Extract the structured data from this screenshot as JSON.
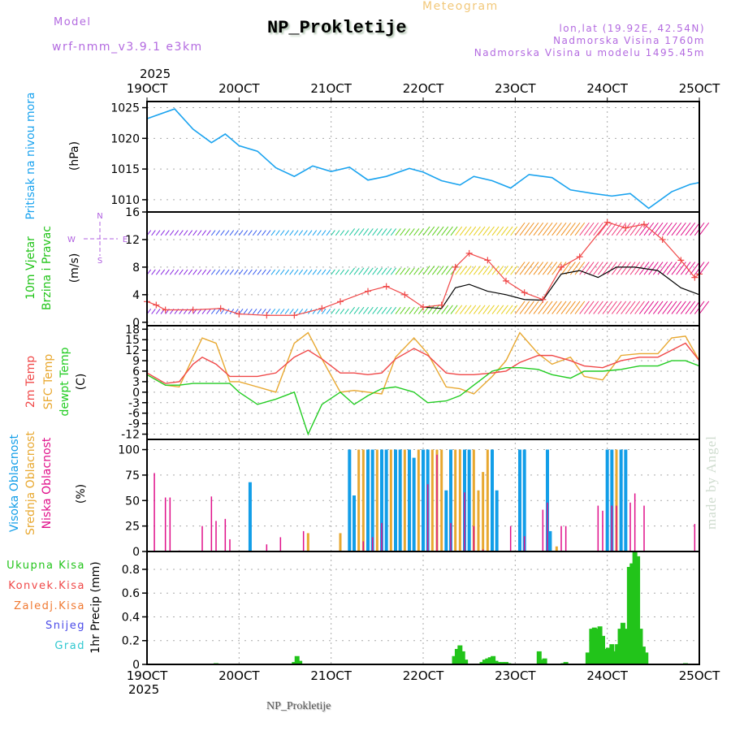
{
  "header": {
    "model_label": "Model",
    "model_name": "wrf-nmm_v3.9.1  e3km",
    "meteogram_label": "Meteogram",
    "station": "NP_Prokletije",
    "coords": "lon,lat (19.92E, 42.54N)",
    "elevation": "Nadmorska Visina 1760m",
    "model_elevation": "Nadmorska Visina u modelu 1495.45m",
    "year": "2025"
  },
  "footer": {
    "station": "NP_Prokletije",
    "year": "2025",
    "watermark": "made by Angel"
  },
  "compass": {
    "n": "N",
    "s": "S",
    "e": "E",
    "w": "W"
  },
  "colors": {
    "pressure": "#1aa3ef",
    "wind_label": "#22c41a",
    "temp2m": "#f04848",
    "sfc": "#e8a830",
    "dew": "#22cc22",
    "cloud_high": "#129ee8",
    "cloud_mid": "#e8a830",
    "cloud_low": "#e0108a",
    "precip_total": "#22c41a",
    "precip_conv": "#f04848",
    "precip_frz": "#f07830",
    "snow": "#4a4ae8",
    "hail": "#30c8d0",
    "compass": "#b060e0"
  },
  "chart_data": [
    {
      "type": "line",
      "title": "Pritisak na nivou mora",
      "ylabel": "(hPa)",
      "ylim": [
        1008,
        1026
      ],
      "yticks": [
        1010,
        1015,
        1020,
        1025
      ],
      "x_ticks": [
        "19OCT",
        "20OCT",
        "21OCT",
        "22OCT",
        "23OCT",
        "24OCT",
        "25OCT"
      ],
      "xlim_days": [
        0,
        6
      ],
      "grid": true,
      "series": [
        {
          "name": "Pritisak na nivou mora",
          "x": [
            0,
            0.3,
            0.5,
            0.7,
            0.85,
            1,
            1.2,
            1.4,
            1.6,
            1.8,
            2,
            2.2,
            2.4,
            2.6,
            2.85,
            3,
            3.2,
            3.4,
            3.55,
            3.75,
            3.95,
            4.15,
            4.4,
            4.6,
            4.85,
            5.05,
            5.25,
            5.45,
            5.7,
            5.9,
            6
          ],
          "values": [
            1023.2,
            1024.8,
            1021.5,
            1019.3,
            1020.7,
            1018.8,
            1017.9,
            1015.2,
            1013.8,
            1015.5,
            1014.6,
            1015.3,
            1013.2,
            1013.8,
            1015.1,
            1014.5,
            1013.1,
            1012.4,
            1013.8,
            1013.1,
            1011.9,
            1014.1,
            1013.6,
            1011.6,
            1011.0,
            1010.6,
            1011.0,
            1008.6,
            1011.3,
            1012.5,
            1012.8
          ]
        }
      ]
    },
    {
      "type": "line",
      "title": "10m Vjetar Brzina i Pravac",
      "ylabel": "(m/s)",
      "ylim": [
        -0.5,
        16
      ],
      "yticks": [
        0,
        4,
        8,
        12,
        16
      ],
      "grid": true,
      "series": [
        {
          "name": "wind speed",
          "color": "#f04848",
          "x": [
            0,
            0.1,
            0.2,
            0.5,
            0.8,
            1,
            1.3,
            1.6,
            1.9,
            2.1,
            2.4,
            2.6,
            2.8,
            3,
            3.2,
            3.35,
            3.5,
            3.7,
            3.9,
            4.1,
            4.3,
            4.5,
            4.7,
            5.0,
            5.2,
            5.4,
            5.6,
            5.8,
            5.95,
            6
          ],
          "values": [
            3,
            2.5,
            1.8,
            1.8,
            2.0,
            1.2,
            1.0,
            1.0,
            2.0,
            3.0,
            4.5,
            5.2,
            4.0,
            2.2,
            2.5,
            8.0,
            10.0,
            9.0,
            6.0,
            4.3,
            3.3,
            8.0,
            9.5,
            14.5,
            13.7,
            14.2,
            12.0,
            9.0,
            6.5,
            7
          ]
        },
        {
          "name": "wind gust",
          "color": "#000000",
          "x": [
            3,
            3.2,
            3.35,
            3.5,
            3.7,
            3.9,
            4.1,
            4.3,
            4.5,
            4.7,
            4.9,
            5.1,
            5.3,
            5.55,
            5.8,
            6
          ],
          "values": [
            2.2,
            2.0,
            5.0,
            5.5,
            4.5,
            4.0,
            3.3,
            3.2,
            7.0,
            7.5,
            6.5,
            8.0,
            8.0,
            7.5,
            5.0,
            4.0
          ]
        },
        {
          "name": "wind barbs level",
          "color": "#129ee8",
          "x": [
            0,
            1,
            2,
            3,
            4,
            5,
            6
          ],
          "values": [
            1.5,
            1.5,
            3.5,
            2.5,
            4.5,
            5,
            4
          ]
        }
      ]
    },
    {
      "type": "line",
      "title": "2m Temp / SFC Temp / dewpt Temp",
      "ylabel": "(C)",
      "ylim": [
        -13.5,
        19
      ],
      "yticks": [
        -12,
        -9,
        -6,
        -3,
        0,
        3,
        6,
        9,
        12,
        15,
        18
      ],
      "grid": true,
      "series": [
        {
          "name": "2m Temp",
          "x": [
            0,
            0.2,
            0.35,
            0.5,
            0.6,
            0.75,
            0.9,
            1,
            1.2,
            1.4,
            1.6,
            1.75,
            1.9,
            2.1,
            2.25,
            2.4,
            2.55,
            2.7,
            2.9,
            3.05,
            3.25,
            3.4,
            3.55,
            3.75,
            3.9,
            4.05,
            4.25,
            4.4,
            4.6,
            4.75,
            4.95,
            5.15,
            5.35,
            5.55,
            5.7,
            5.85,
            6
          ],
          "values": [
            5.5,
            2.5,
            3,
            8,
            10,
            8,
            4.5,
            4.5,
            4.5,
            5.5,
            10,
            12,
            9.5,
            5.5,
            5.5,
            5,
            5.5,
            9.5,
            12.5,
            10.5,
            5.5,
            5,
            5,
            5.5,
            6,
            8.5,
            10.5,
            10.5,
            9,
            7.5,
            7,
            9,
            10,
            10,
            12,
            14,
            9
          ]
        },
        {
          "name": "SFC Temp",
          "x": [
            0,
            0.2,
            0.35,
            0.5,
            0.6,
            0.75,
            0.9,
            1,
            1.2,
            1.4,
            1.6,
            1.75,
            1.9,
            2.1,
            2.25,
            2.4,
            2.55,
            2.7,
            2.9,
            3.05,
            3.25,
            3.4,
            3.55,
            3.75,
            3.9,
            4.05,
            4.25,
            4.4,
            4.6,
            4.75,
            4.95,
            5.15,
            5.35,
            5.55,
            5.7,
            5.85,
            6
          ],
          "values": [
            5,
            2,
            1.5,
            10,
            15.5,
            14,
            3,
            3,
            1.5,
            0,
            14,
            17,
            9.5,
            0,
            0.5,
            0,
            -0.5,
            10,
            15.5,
            11,
            1.5,
            1,
            -0.5,
            4.5,
            9,
            17,
            11,
            8,
            10,
            4.5,
            3.5,
            10.5,
            11,
            11,
            15.5,
            16,
            9
          ]
        },
        {
          "name": "dewpt Temp",
          "x": [
            0,
            0.2,
            0.35,
            0.5,
            0.6,
            0.75,
            0.9,
            1,
            1.2,
            1.4,
            1.6,
            1.75,
            1.9,
            2.1,
            2.25,
            2.4,
            2.55,
            2.7,
            2.9,
            3.05,
            3.25,
            3.4,
            3.55,
            3.75,
            3.9,
            4.05,
            4.25,
            4.4,
            4.6,
            4.75,
            4.95,
            5.15,
            5.35,
            5.55,
            5.7,
            5.85,
            6
          ],
          "values": [
            5,
            2,
            2,
            2.5,
            2.5,
            2.5,
            2.5,
            0,
            -3.5,
            -2,
            0,
            -12,
            -3.5,
            0,
            -3.5,
            -1,
            1,
            1.5,
            0,
            -3,
            -2.5,
            -1,
            2,
            6,
            7,
            7,
            6.5,
            5,
            4,
            6,
            6,
            6.5,
            7.5,
            7.5,
            9,
            9,
            7.5
          ]
        }
      ]
    },
    {
      "type": "bar",
      "title": "Visoka / Srednja / Niska Oblacnost",
      "ylabel": "(%)",
      "ylim": [
        0,
        110
      ],
      "yticks": [
        0,
        25,
        50,
        75,
        100
      ],
      "grid": true,
      "series": [
        {
          "name": "Visoka Oblacnost",
          "x": [
            1.12,
            2.2,
            2.25,
            2.4,
            2.45,
            2.55,
            2.6,
            2.7,
            2.75,
            2.85,
            2.9,
            3.0,
            3.05,
            3.25,
            3.3,
            3.45,
            3.5,
            3.75,
            3.8,
            4.05,
            4.1,
            4.35,
            4.38,
            5.0,
            5.05,
            5.15,
            5.2
          ],
          "values": [
            68,
            100,
            55,
            100,
            100,
            100,
            100,
            100,
            100,
            100,
            92,
            100,
            100,
            60,
            100,
            100,
            100,
            100,
            60,
            100,
            100,
            100,
            20,
            100,
            100,
            100,
            100
          ]
        },
        {
          "name": "Srednja Oblacnost",
          "x": [
            1.75,
            2.1,
            2.3,
            2.35,
            2.5,
            2.65,
            2.8,
            2.95,
            3.1,
            3.15,
            3.2,
            3.35,
            3.4,
            3.55,
            3.6,
            3.65,
            3.7,
            4.45,
            5.1
          ],
          "values": [
            18,
            18,
            100,
            100,
            100,
            100,
            100,
            100,
            100,
            100,
            100,
            100,
            100,
            100,
            60,
            78,
            100,
            5,
            100
          ]
        },
        {
          "name": "Niska Oblacnost",
          "x": [
            0.08,
            0.2,
            0.25,
            0.35,
            0.6,
            0.7,
            0.75,
            0.85,
            0.9,
            1.3,
            1.45,
            1.7,
            2.35,
            2.45,
            2.55,
            3.05,
            3.15,
            3.3,
            3.45,
            3.55,
            3.65,
            3.95,
            4.1,
            4.3,
            4.35,
            4.5,
            4.55,
            4.9,
            4.95,
            5.05,
            5.1,
            5.25,
            5.3,
            5.4,
            5.5,
            5.95
          ],
          "values": [
            77,
            53,
            53,
            1,
            25,
            54,
            30,
            32,
            12,
            7,
            14,
            20,
            10,
            14,
            28,
            66,
            95,
            28,
            58,
            25,
            2,
            25,
            15,
            41,
            48,
            25,
            25,
            45,
            40,
            45,
            45,
            48,
            57,
            45,
            0,
            27
          ]
        }
      ]
    },
    {
      "type": "bar",
      "title": "1hr Precip (mm)",
      "ylabel": "1hr Precip (mm)",
      "ylim": [
        0,
        0.95
      ],
      "yticks": [
        0,
        0.2,
        0.4,
        0.6,
        0.8
      ],
      "legend": [
        "Ukupna Kisa",
        "Konvek.Kisa",
        "Zaledj.Kisa",
        "Snijeg",
        "Grad"
      ],
      "grid": true,
      "series": [
        {
          "name": "Ukupna Kisa",
          "x": [
            0.75,
            1.6,
            1.63,
            1.66,
            3.34,
            3.37,
            3.4,
            3.43,
            3.46,
            3.64,
            3.67,
            3.7,
            3.73,
            3.76,
            3.79,
            3.82,
            3.86,
            3.9,
            3.93,
            4.26,
            4.29,
            4.32,
            4.52,
            4.55,
            4.79,
            4.83,
            4.86,
            4.89,
            4.92,
            4.95,
            4.98,
            5.01,
            5.05,
            5.08,
            5.11,
            5.14,
            5.17,
            5.21,
            5.24,
            5.27,
            5.3,
            5.33,
            5.36,
            5.39,
            5.42,
            5.45,
            5.48,
            5.52,
            5.55,
            5.58,
            5.85
          ],
          "values": [
            0.01,
            0.02,
            0.07,
            0.03,
            0.07,
            0.13,
            0.16,
            0.11,
            0.04,
            0.02,
            0.04,
            0.05,
            0.06,
            0.07,
            0.03,
            0.02,
            0.02,
            0.02,
            0.01,
            0.11,
            0.04,
            0.05,
            0.01,
            0.02,
            0.1,
            0.3,
            0.31,
            0.3,
            0.32,
            0.24,
            0.13,
            0.14,
            0.17,
            0.11,
            0.17,
            0.3,
            0.35,
            0.3,
            0.82,
            0.85,
            0.95,
            0.91,
            0.3,
            0.15,
            0.1,
            0.0,
            0.0,
            0.0,
            0.0,
            0.0,
            0.01
          ]
        }
      ]
    }
  ]
}
